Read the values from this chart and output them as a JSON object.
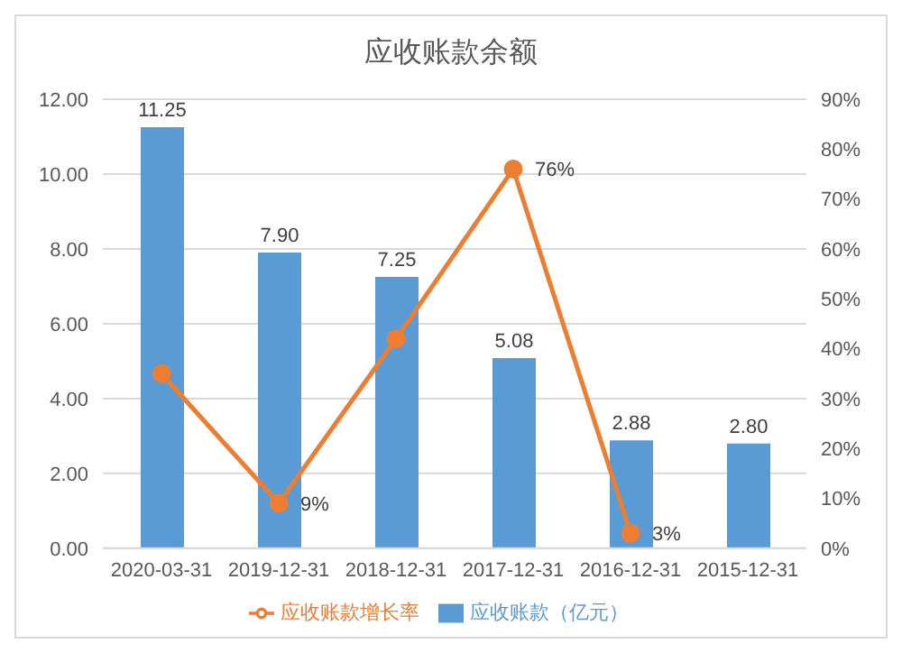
{
  "chart_data": {
    "type": "bar",
    "title": "应收账款余额",
    "categories": [
      "2020-03-31",
      "2019-12-31",
      "2018-12-31",
      "2017-12-31",
      "2016-12-31",
      "2015-12-31"
    ],
    "series": [
      {
        "name": "应收账款（亿元）",
        "color": "#5b9bd5",
        "values": [
          11.25,
          7.9,
          7.25,
          5.08,
          2.88,
          2.8
        ],
        "value_labels": [
          "11.25",
          "7.90",
          "7.25",
          "5.08",
          "2.88",
          "2.80"
        ]
      },
      {
        "name": "应收账款增长率",
        "type": "line",
        "axis": "y2",
        "color": "#ed7d31",
        "values": [
          35,
          9,
          42,
          76,
          3,
          null
        ],
        "value_labels": [
          null,
          "9%",
          null,
          "76%",
          "3%",
          null
        ]
      }
    ],
    "ylim": [
      0,
      12
    ],
    "yticks": [
      {
        "value": 0,
        "label": "0.00"
      },
      {
        "value": 2,
        "label": "2.00"
      },
      {
        "value": 4,
        "label": "4.00"
      },
      {
        "value": 6,
        "label": "6.00"
      },
      {
        "value": 8,
        "label": "8.00"
      },
      {
        "value": 10,
        "label": "10.00"
      },
      {
        "value": 12,
        "label": "12.00"
      }
    ],
    "y2lim": [
      0,
      90
    ],
    "y2ticks": [
      {
        "value": 0,
        "label": "0%"
      },
      {
        "value": 10,
        "label": "10%"
      },
      {
        "value": 20,
        "label": "20%"
      },
      {
        "value": 30,
        "label": "30%"
      },
      {
        "value": 40,
        "label": "40%"
      },
      {
        "value": 50,
        "label": "50%"
      },
      {
        "value": 60,
        "label": "60%"
      },
      {
        "value": 70,
        "label": "70%"
      },
      {
        "value": 80,
        "label": "80%"
      },
      {
        "value": 90,
        "label": "90%"
      }
    ],
    "grid": "y",
    "legend": "bottom",
    "marker": "circle",
    "line_style": "solid"
  }
}
